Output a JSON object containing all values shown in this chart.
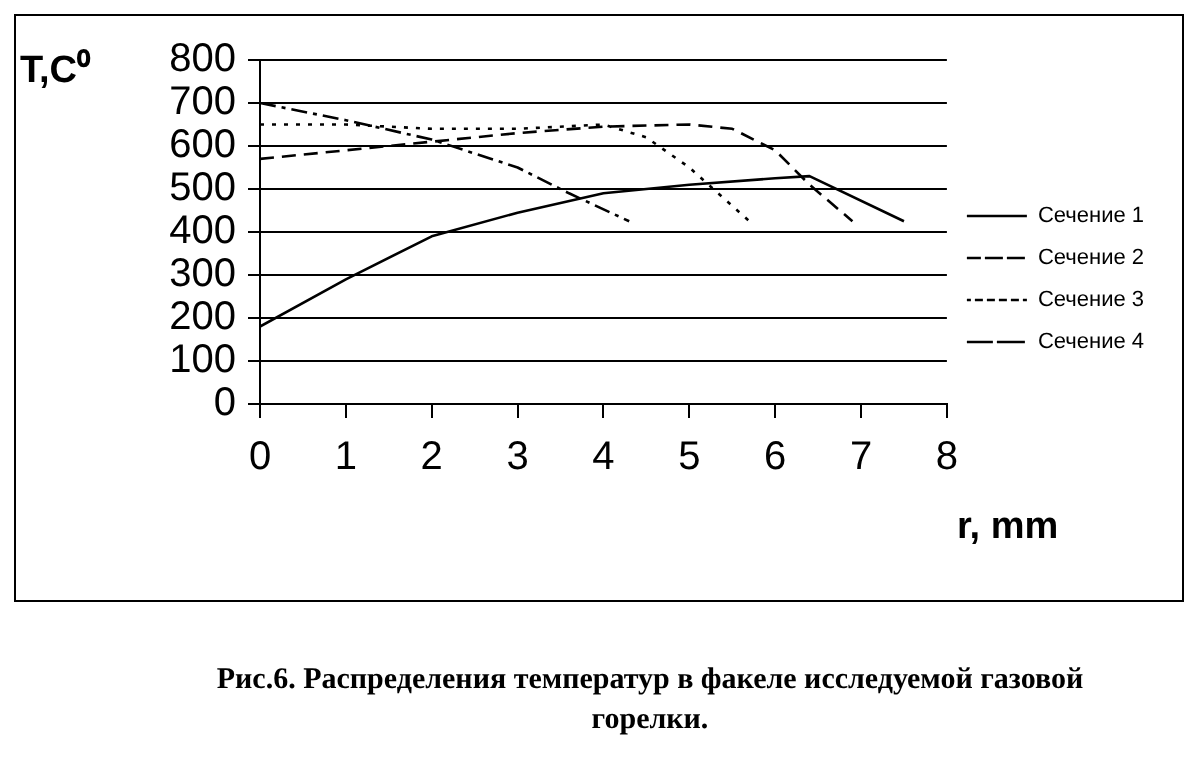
{
  "chart_data": {
    "type": "line",
    "xlabel": "r, mm",
    "ylabel": "T,C⁰",
    "xlim": [
      0,
      8
    ],
    "xticks": [
      0,
      1,
      2,
      3,
      4,
      5,
      6,
      7,
      8
    ],
    "ylim": [
      0,
      800
    ],
    "yticks": [
      0,
      100,
      200,
      300,
      400,
      500,
      600,
      700,
      800
    ],
    "grid": "y",
    "legend": "right",
    "marker": "none",
    "series": [
      {
        "name": "Сечение 1",
        "color": "#000000",
        "line_style": "solid",
        "x": [
          0,
          1,
          2,
          3,
          4,
          5,
          6,
          6.4,
          7.5
        ],
        "values": [
          180,
          290,
          390,
          445,
          490,
          510,
          525,
          530,
          425
        ]
      },
      {
        "name": "Сечение 2",
        "color": "#000000",
        "line_style": "dashed",
        "x": [
          0,
          1,
          2,
          3,
          4,
          5,
          5.5,
          6,
          6.4,
          6.9
        ],
        "values": [
          570,
          590,
          610,
          630,
          645,
          650,
          640,
          590,
          510,
          425
        ]
      },
      {
        "name": "Сечение 3",
        "color": "#000000",
        "line_style": "dotted",
        "x": [
          0,
          1,
          2,
          3,
          4,
          4.5,
          5,
          5.7
        ],
        "values": [
          650,
          650,
          640,
          640,
          650,
          620,
          550,
          425
        ]
      },
      {
        "name": "Сечение 4",
        "color": "#000000",
        "line_style": "dashdot",
        "x": [
          0,
          1,
          2,
          3,
          3.6,
          4.3
        ],
        "values": [
          700,
          660,
          615,
          550,
          490,
          425
        ]
      }
    ],
    "annotations": [
      "Рис.6.  Распределения  температур в факеле исследуемой газовой горелки."
    ]
  }
}
